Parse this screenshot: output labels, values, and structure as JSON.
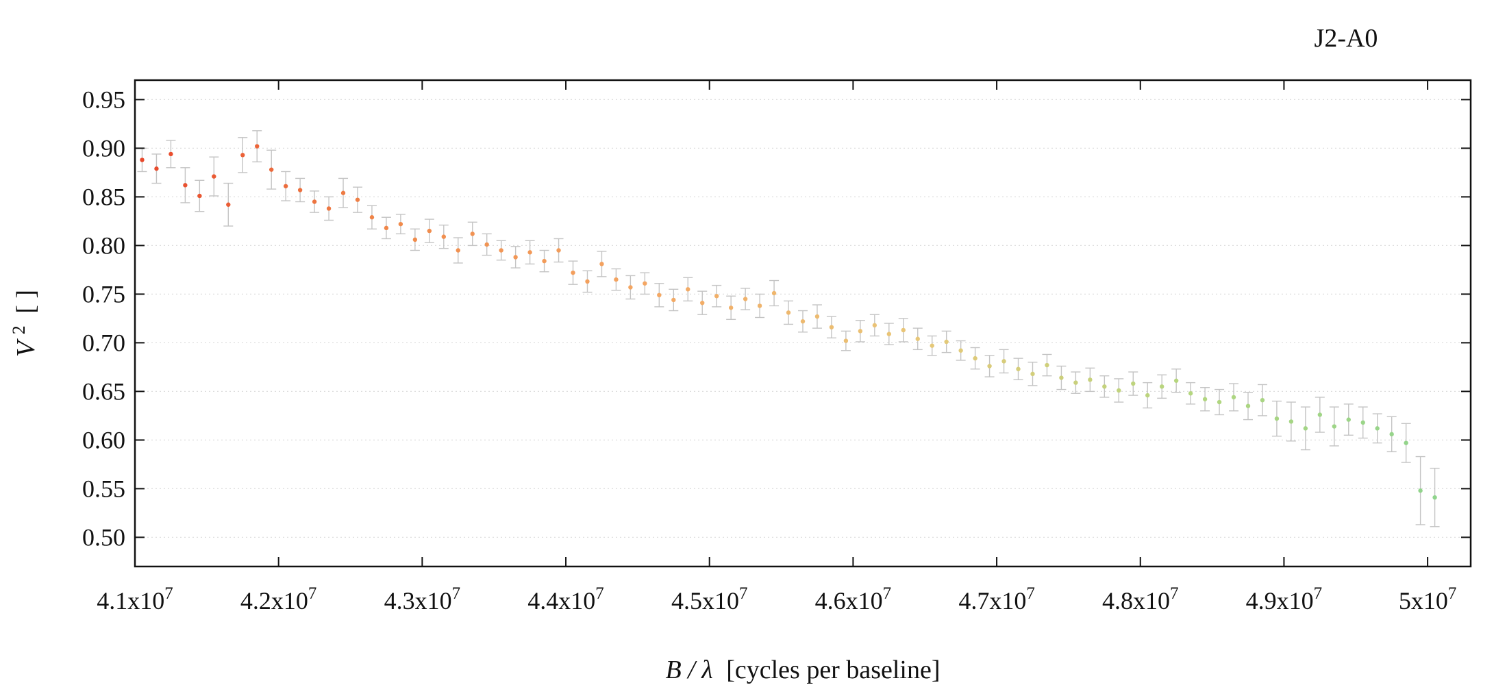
{
  "chart_data": {
    "type": "scatter",
    "title": "J2-A0",
    "xlabel": {
      "var": "B / λ",
      "unit": "[cycles per baseline]"
    },
    "ylabel": {
      "var": "V",
      "sup": "2",
      "unit": "[ ]"
    },
    "xlim": [
      41000000,
      50300000
    ],
    "ylim": [
      0.47,
      0.97
    ],
    "grid": "horizontal-dotted",
    "error_bars": true,
    "x_ticks": [
      {
        "value": 41000000,
        "mant": "4.1x10",
        "exp": "7"
      },
      {
        "value": 42000000,
        "mant": "4.2x10",
        "exp": "7"
      },
      {
        "value": 43000000,
        "mant": "4.3x10",
        "exp": "7"
      },
      {
        "value": 44000000,
        "mant": "4.4x10",
        "exp": "7"
      },
      {
        "value": 45000000,
        "mant": "4.5x10",
        "exp": "7"
      },
      {
        "value": 46000000,
        "mant": "4.6x10",
        "exp": "7"
      },
      {
        "value": 47000000,
        "mant": "4.7x10",
        "exp": "7"
      },
      {
        "value": 48000000,
        "mant": "4.8x10",
        "exp": "7"
      },
      {
        "value": 49000000,
        "mant": "4.9x10",
        "exp": "7"
      },
      {
        "value": 50000000,
        "mant": "5x10",
        "exp": "7"
      }
    ],
    "y_ticks": [
      {
        "value": 0.95,
        "label": "0.95"
      },
      {
        "value": 0.9,
        "label": "0.90"
      },
      {
        "value": 0.85,
        "label": "0.85"
      },
      {
        "value": 0.8,
        "label": "0.80"
      },
      {
        "value": 0.75,
        "label": "0.75"
      },
      {
        "value": 0.7,
        "label": "0.70"
      },
      {
        "value": 0.65,
        "label": "0.65"
      },
      {
        "value": 0.6,
        "label": "0.60"
      },
      {
        "value": 0.55,
        "label": "0.55"
      },
      {
        "value": 0.5,
        "label": "0.50"
      }
    ],
    "colors": {
      "error_bar": "#c4c4c4",
      "gradient": [
        "#e8472a",
        "#f08a4b",
        "#f4a864",
        "#e8c778",
        "#b6d67e",
        "#8fd48c"
      ]
    },
    "points": [
      [
        41050000,
        0.888,
        0.012
      ],
      [
        41150000,
        0.879,
        0.015
      ],
      [
        41250000,
        0.894,
        0.014
      ],
      [
        41350000,
        0.862,
        0.018
      ],
      [
        41450000,
        0.851,
        0.016
      ],
      [
        41550000,
        0.871,
        0.02
      ],
      [
        41650000,
        0.842,
        0.022
      ],
      [
        41750000,
        0.893,
        0.018
      ],
      [
        41850000,
        0.902,
        0.016
      ],
      [
        41950000,
        0.878,
        0.02
      ],
      [
        42050000,
        0.861,
        0.015
      ],
      [
        42150000,
        0.857,
        0.012
      ],
      [
        42250000,
        0.845,
        0.011
      ],
      [
        42350000,
        0.838,
        0.012
      ],
      [
        42450000,
        0.854,
        0.015
      ],
      [
        42550000,
        0.847,
        0.013
      ],
      [
        42650000,
        0.829,
        0.012
      ],
      [
        42750000,
        0.818,
        0.011
      ],
      [
        42850000,
        0.822,
        0.01
      ],
      [
        42950000,
        0.806,
        0.011
      ],
      [
        43050000,
        0.815,
        0.012
      ],
      [
        43150000,
        0.809,
        0.012
      ],
      [
        43250000,
        0.795,
        0.013
      ],
      [
        43350000,
        0.812,
        0.012
      ],
      [
        43450000,
        0.801,
        0.011
      ],
      [
        43550000,
        0.795,
        0.01
      ],
      [
        43650000,
        0.788,
        0.011
      ],
      [
        43750000,
        0.793,
        0.012
      ],
      [
        43850000,
        0.784,
        0.011
      ],
      [
        43950000,
        0.795,
        0.012
      ],
      [
        44050000,
        0.772,
        0.012
      ],
      [
        44150000,
        0.763,
        0.011
      ],
      [
        44250000,
        0.781,
        0.013
      ],
      [
        44350000,
        0.765,
        0.011
      ],
      [
        44450000,
        0.757,
        0.012
      ],
      [
        44550000,
        0.761,
        0.011
      ],
      [
        44650000,
        0.749,
        0.012
      ],
      [
        44750000,
        0.744,
        0.011
      ],
      [
        44850000,
        0.755,
        0.012
      ],
      [
        44950000,
        0.741,
        0.012
      ],
      [
        45050000,
        0.748,
        0.011
      ],
      [
        45150000,
        0.736,
        0.012
      ],
      [
        45250000,
        0.745,
        0.011
      ],
      [
        45350000,
        0.738,
        0.012
      ],
      [
        45450000,
        0.751,
        0.013
      ],
      [
        45550000,
        0.731,
        0.012
      ],
      [
        45650000,
        0.722,
        0.011
      ],
      [
        45750000,
        0.727,
        0.012
      ],
      [
        45850000,
        0.716,
        0.011
      ],
      [
        45950000,
        0.702,
        0.01
      ],
      [
        46050000,
        0.712,
        0.011
      ],
      [
        46150000,
        0.718,
        0.011
      ],
      [
        46250000,
        0.709,
        0.011
      ],
      [
        46350000,
        0.713,
        0.012
      ],
      [
        46450000,
        0.704,
        0.011
      ],
      [
        46550000,
        0.697,
        0.01
      ],
      [
        46650000,
        0.701,
        0.011
      ],
      [
        46750000,
        0.692,
        0.01
      ],
      [
        46850000,
        0.684,
        0.011
      ],
      [
        46950000,
        0.676,
        0.011
      ],
      [
        47050000,
        0.681,
        0.012
      ],
      [
        47150000,
        0.673,
        0.011
      ],
      [
        47250000,
        0.668,
        0.012
      ],
      [
        47350000,
        0.677,
        0.011
      ],
      [
        47450000,
        0.664,
        0.012
      ],
      [
        47550000,
        0.659,
        0.011
      ],
      [
        47650000,
        0.662,
        0.012
      ],
      [
        47750000,
        0.655,
        0.011
      ],
      [
        47850000,
        0.651,
        0.012
      ],
      [
        47950000,
        0.658,
        0.012
      ],
      [
        48050000,
        0.646,
        0.013
      ],
      [
        48150000,
        0.655,
        0.012
      ],
      [
        48250000,
        0.661,
        0.012
      ],
      [
        48350000,
        0.648,
        0.011
      ],
      [
        48450000,
        0.642,
        0.012
      ],
      [
        48550000,
        0.639,
        0.013
      ],
      [
        48650000,
        0.644,
        0.014
      ],
      [
        48750000,
        0.635,
        0.014
      ],
      [
        48850000,
        0.641,
        0.016
      ],
      [
        48950000,
        0.622,
        0.018
      ],
      [
        49050000,
        0.619,
        0.02
      ],
      [
        49150000,
        0.612,
        0.022
      ],
      [
        49250000,
        0.626,
        0.018
      ],
      [
        49350000,
        0.614,
        0.02
      ],
      [
        49450000,
        0.621,
        0.016
      ],
      [
        49550000,
        0.618,
        0.016
      ],
      [
        49650000,
        0.612,
        0.015
      ],
      [
        49750000,
        0.606,
        0.018
      ],
      [
        49850000,
        0.597,
        0.02
      ],
      [
        49950000,
        0.548,
        0.035
      ],
      [
        50050000,
        0.541,
        0.03
      ]
    ]
  }
}
